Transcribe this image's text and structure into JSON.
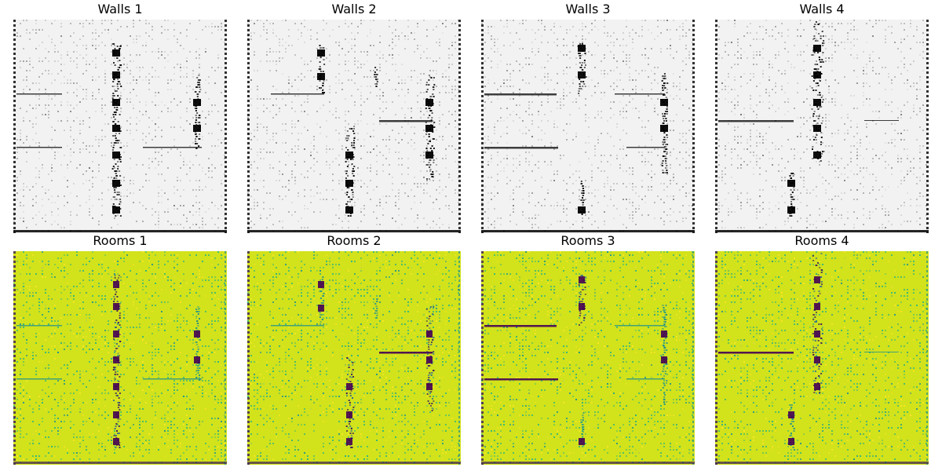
{
  "figure": {
    "rows": [
      {
        "kind": "walls",
        "colormap": "gray_r",
        "panels": [
          {
            "title": "Walls 1"
          },
          {
            "title": "Walls 2"
          },
          {
            "title": "Walls 3"
          },
          {
            "title": "Walls 4"
          }
        ]
      },
      {
        "kind": "rooms",
        "colormap": "viridis",
        "panels": [
          {
            "title": "Rooms 1"
          },
          {
            "title": "Rooms 2"
          },
          {
            "title": "Rooms 3"
          },
          {
            "title": "Rooms 4"
          }
        ]
      }
    ],
    "colors": {
      "walls_background": "#f2f2f2",
      "walls_ink": "#000000",
      "rooms_background": "#d2e21b",
      "rooms_mid": "#35b779",
      "rooms_low": "#3b1c5a",
      "rooms_deep": "#440154",
      "rooms_bright": "#fde725"
    }
  }
}
